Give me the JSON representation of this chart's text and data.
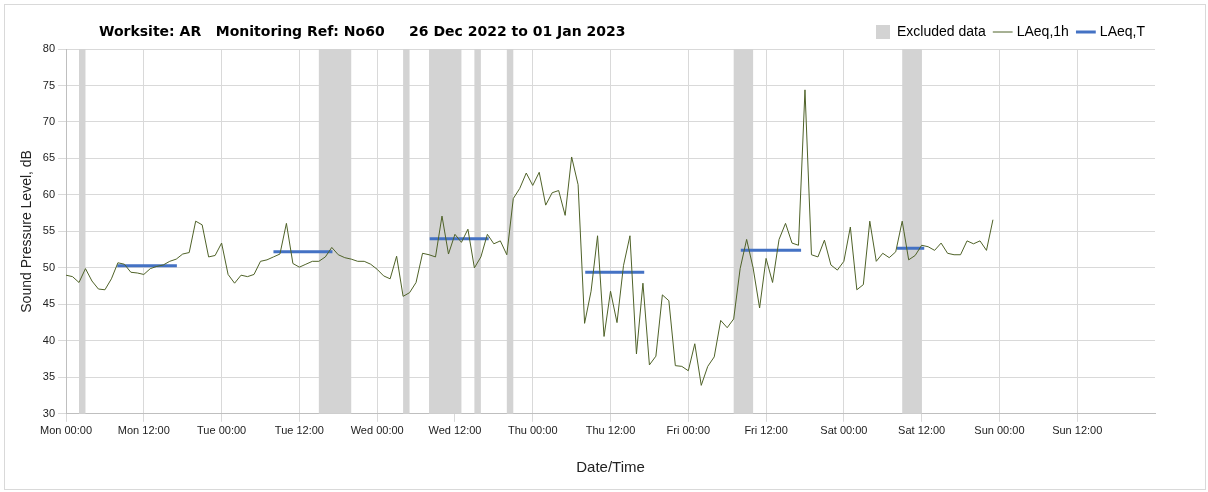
{
  "chart_data": {
    "type": "line",
    "title": "Worksite: AR   Monitoring Ref: No60     26 Dec 2022 to 01 Jan 2023",
    "xlabel": "Date/Time",
    "ylabel": "Sound Pressure Level, dB",
    "xlim": [
      "2022-12-26T00:00",
      "2023-01-02T00:00"
    ],
    "xticks": [
      {
        "value": "2022-12-26T00:00",
        "label": "Mon 00:00"
      },
      {
        "value": "2022-12-26T12:00",
        "label": "Mon 12:00"
      },
      {
        "value": "2022-12-27T00:00",
        "label": "Tue 00:00"
      },
      {
        "value": "2022-12-27T12:00",
        "label": "Tue 12:00"
      },
      {
        "value": "2022-12-28T00:00",
        "label": "Wed 00:00"
      },
      {
        "value": "2022-12-28T12:00",
        "label": "Wed 12:00"
      },
      {
        "value": "2022-12-29T00:00",
        "label": "Thu 00:00"
      },
      {
        "value": "2022-12-29T12:00",
        "label": "Thu 12:00"
      },
      {
        "value": "2022-12-30T00:00",
        "label": "Fri 00:00"
      },
      {
        "value": "2022-12-30T12:00",
        "label": "Fri 12:00"
      },
      {
        "value": "2022-12-31T00:00",
        "label": "Sat 00:00"
      },
      {
        "value": "2022-12-31T12:00",
        "label": "Sat 12:00"
      },
      {
        "value": "2023-01-01T00:00",
        "label": "Sun 00:00"
      },
      {
        "value": "2023-01-01T12:00",
        "label": "Sun 12:00"
      }
    ],
    "ylim": [
      30,
      80
    ],
    "yticks": [
      30,
      35,
      40,
      45,
      50,
      55,
      60,
      65,
      70,
      75,
      80
    ],
    "grid": true,
    "legend": "top right",
    "marker": "none",
    "bands": [
      {
        "axis": "x",
        "from": "2022-12-26T02:00",
        "to": "2022-12-26T03:00",
        "label": "Excluded data",
        "color": "#d3d3d3"
      },
      {
        "axis": "x",
        "from": "2022-12-27T15:00",
        "to": "2022-12-27T20:00",
        "color": "#d3d3d3"
      },
      {
        "axis": "x",
        "from": "2022-12-28T04:00",
        "to": "2022-12-28T05:00",
        "color": "#d3d3d3"
      },
      {
        "axis": "x",
        "from": "2022-12-28T08:00",
        "to": "2022-12-28T13:00",
        "color": "#d3d3d3"
      },
      {
        "axis": "x",
        "from": "2022-12-28T15:00",
        "to": "2022-12-28T16:00",
        "color": "#d3d3d3"
      },
      {
        "axis": "x",
        "from": "2022-12-28T20:00",
        "to": "2022-12-28T21:00",
        "color": "#d3d3d3"
      },
      {
        "axis": "x",
        "from": "2022-12-30T07:00",
        "to": "2022-12-30T10:00",
        "color": "#d3d3d3"
      },
      {
        "axis": "x",
        "from": "2022-12-31T09:00",
        "to": "2022-12-31T12:00",
        "color": "#d3d3d3"
      }
    ],
    "series": [
      {
        "name": "LAeq,1h",
        "color": "#4f6228",
        "x": [
          "2022-12-26T00:00",
          "2022-12-26T01:00",
          "2022-12-26T02:00",
          "2022-12-26T03:00",
          "2022-12-26T04:00",
          "2022-12-26T05:00",
          "2022-12-26T06:00",
          "2022-12-26T07:00",
          "2022-12-26T08:00",
          "2022-12-26T09:00",
          "2022-12-26T10:00",
          "2022-12-26T11:00",
          "2022-12-26T12:00",
          "2022-12-26T13:00",
          "2022-12-26T14:00",
          "2022-12-26T15:00",
          "2022-12-26T16:00",
          "2022-12-26T17:00",
          "2022-12-26T18:00",
          "2022-12-26T19:00",
          "2022-12-26T20:00",
          "2022-12-26T21:00",
          "2022-12-26T22:00",
          "2022-12-26T23:00",
          "2022-12-27T00:00",
          "2022-12-27T01:00",
          "2022-12-27T02:00",
          "2022-12-27T03:00",
          "2022-12-27T04:00",
          "2022-12-27T05:00",
          "2022-12-27T06:00",
          "2022-12-27T07:00",
          "2022-12-27T08:00",
          "2022-12-27T09:00",
          "2022-12-27T10:00",
          "2022-12-27T11:00",
          "2022-12-27T12:00",
          "2022-12-27T13:00",
          "2022-12-27T14:00",
          "2022-12-27T15:00",
          "2022-12-27T16:00",
          "2022-12-27T17:00",
          "2022-12-27T18:00",
          "2022-12-27T19:00",
          "2022-12-27T20:00",
          "2022-12-27T21:00",
          "2022-12-27T22:00",
          "2022-12-27T23:00",
          "2022-12-28T00:00",
          "2022-12-28T01:00",
          "2022-12-28T02:00",
          "2022-12-28T03:00",
          "2022-12-28T04:00",
          "2022-12-28T05:00",
          "2022-12-28T06:00",
          "2022-12-28T07:00",
          "2022-12-28T08:00",
          "2022-12-28T09:00",
          "2022-12-28T10:00",
          "2022-12-28T11:00",
          "2022-12-28T12:00",
          "2022-12-28T13:00",
          "2022-12-28T14:00",
          "2022-12-28T15:00",
          "2022-12-28T16:00",
          "2022-12-28T17:00",
          "2022-12-28T18:00",
          "2022-12-28T19:00",
          "2022-12-28T20:00",
          "2022-12-28T21:00",
          "2022-12-28T22:00",
          "2022-12-28T23:00",
          "2022-12-29T00:00",
          "2022-12-29T01:00",
          "2022-12-29T02:00",
          "2022-12-29T03:00",
          "2022-12-29T04:00",
          "2022-12-29T05:00",
          "2022-12-29T06:00",
          "2022-12-29T07:00",
          "2022-12-29T08:00",
          "2022-12-29T09:00",
          "2022-12-29T10:00",
          "2022-12-29T11:00",
          "2022-12-29T12:00",
          "2022-12-29T13:00",
          "2022-12-29T14:00",
          "2022-12-29T15:00",
          "2022-12-29T16:00",
          "2022-12-29T17:00",
          "2022-12-29T18:00",
          "2022-12-29T19:00",
          "2022-12-29T20:00",
          "2022-12-29T21:00",
          "2022-12-29T22:00",
          "2022-12-29T23:00",
          "2022-12-30T00:00",
          "2022-12-30T01:00",
          "2022-12-30T02:00",
          "2022-12-30T03:00",
          "2022-12-30T04:00",
          "2022-12-30T05:00",
          "2022-12-30T06:00",
          "2022-12-30T07:00",
          "2022-12-30T08:00",
          "2022-12-30T09:00",
          "2022-12-30T10:00",
          "2022-12-30T11:00",
          "2022-12-30T12:00",
          "2022-12-30T13:00",
          "2022-12-30T14:00",
          "2022-12-30T15:00",
          "2022-12-30T16:00",
          "2022-12-30T17:00",
          "2022-12-30T18:00",
          "2022-12-30T19:00",
          "2022-12-30T20:00",
          "2022-12-30T21:00",
          "2022-12-30T22:00",
          "2022-12-30T23:00",
          "2022-12-31T00:00",
          "2022-12-31T01:00",
          "2022-12-31T02:00",
          "2022-12-31T03:00",
          "2022-12-31T04:00",
          "2022-12-31T05:00",
          "2022-12-31T06:00",
          "2022-12-31T07:00",
          "2022-12-31T08:00",
          "2022-12-31T09:00",
          "2022-12-31T10:00",
          "2022-12-31T11:00",
          "2022-12-31T12:00",
          "2022-12-31T13:00",
          "2022-12-31T14:00",
          "2022-12-31T15:00",
          "2022-12-31T16:00",
          "2022-12-31T17:00",
          "2022-12-31T18:00",
          "2022-12-31T19:00",
          "2022-12-31T20:00",
          "2022-12-31T21:00",
          "2022-12-31T22:00",
          "2022-12-31T23:00"
        ],
        "values": [
          49.0,
          48.8,
          48.0,
          49.9,
          48.2,
          47.1,
          47.0,
          48.5,
          50.7,
          50.5,
          49.4,
          49.3,
          49.1,
          49.9,
          50.2,
          50.4,
          50.9,
          51.2,
          51.9,
          52.1,
          56.4,
          55.9,
          51.5,
          51.7,
          53.4,
          49.1,
          47.9,
          49.0,
          48.8,
          49.1,
          50.9,
          51.1,
          51.5,
          51.9,
          56.1,
          50.6,
          50.1,
          50.5,
          50.9,
          50.9,
          51.5,
          52.8,
          51.8,
          51.4,
          51.2,
          50.9,
          50.9,
          50.5,
          49.8,
          48.9,
          48.5,
          51.6,
          46.1,
          46.6,
          48.0,
          52.0,
          51.8,
          51.5,
          57.1,
          51.9,
          54.6,
          53.5,
          55.3,
          50.0,
          51.5,
          54.6,
          53.3,
          53.7,
          51.8,
          59.5,
          60.9,
          63.0,
          61.3,
          63.1,
          58.6,
          60.3,
          60.6,
          57.2,
          65.2,
          61.4,
          42.4,
          46.8,
          54.4,
          40.6,
          46.8,
          42.5,
          50.3,
          54.4,
          38.2,
          47.9,
          36.7,
          37.9,
          46.3,
          45.5,
          36.6,
          36.5,
          35.9,
          39.6,
          33.9,
          36.5,
          37.8,
          42.8,
          41.8,
          43.0,
          49.9,
          53.9,
          50.0,
          44.5,
          51.3,
          48.0,
          53.9,
          56.1,
          53.4,
          53.1,
          74.4,
          51.8,
          51.5,
          53.8,
          50.4,
          49.7,
          50.9,
          55.6,
          47.0,
          47.7,
          56.4,
          50.9,
          52.0,
          51.4,
          52.2,
          56.4,
          51.1,
          51.7,
          53.1,
          52.9,
          52.4,
          53.4,
          52.0,
          51.8,
          51.8,
          53.7,
          53.3,
          53.7,
          52.4,
          56.6
        ]
      },
      {
        "name": "LAeq,T",
        "color": "#4472c4",
        "x": [
          "2022-12-26T07:54",
          "2022-12-26T17:06",
          "2022-12-27T00:00",
          "2022-12-27T08:00",
          "2022-12-27T17:06",
          "2022-12-28T00:00",
          "2022-12-28T08:06",
          "2022-12-28T17:12",
          "2022-12-29T00:00",
          "2022-12-29T08:06",
          "2022-12-29T17:12",
          "2022-12-30T00:00",
          "2022-12-30T08:06",
          "2022-12-30T17:24",
          "2022-12-31T00:00",
          "2022-12-31T08:12",
          "2022-12-31T12:24"
        ],
        "values": [
          50.3,
          50.3,
          null,
          52.2,
          52.2,
          null,
          54.0,
          54.0,
          null,
          49.4,
          49.4,
          null,
          52.4,
          52.4,
          null,
          52.7,
          52.7
        ]
      }
    ]
  }
}
